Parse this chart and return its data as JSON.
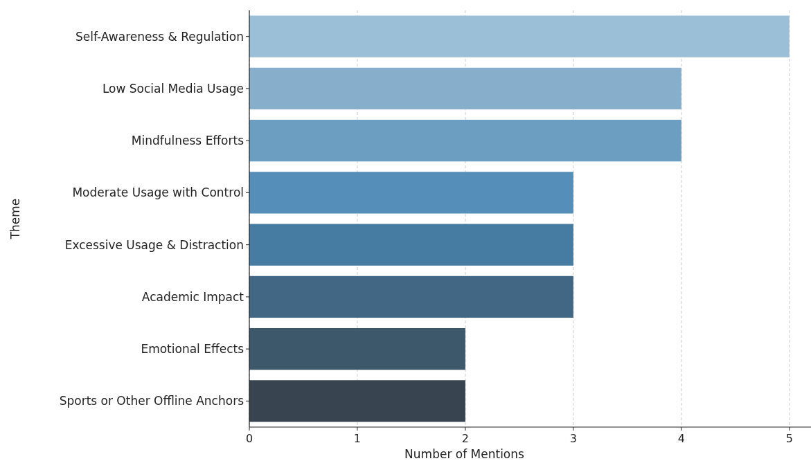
{
  "chart_data": {
    "type": "bar",
    "orientation": "horizontal",
    "categories": [
      "Self-Awareness & Regulation",
      "Low Social Media Usage",
      "Mindfulness Efforts",
      "Moderate Usage with Control",
      "Excessive Usage & Distraction",
      "Academic Impact",
      "Emotional Effects",
      "Sports or Other Offline Anchors"
    ],
    "values": [
      5,
      4,
      4,
      3,
      3,
      3,
      2,
      2
    ],
    "colors": [
      "#9bbfd6",
      "#87aecb",
      "#6c9ec1",
      "#558eb9",
      "#467ca1",
      "#426784",
      "#3d586b",
      "#384550"
    ],
    "xlim": [
      0,
      5.2
    ],
    "xticks": [
      0,
      1,
      2,
      3,
      4,
      5
    ],
    "xlabel": "Number of Mentions",
    "ylabel": "Theme",
    "grid": "x"
  }
}
